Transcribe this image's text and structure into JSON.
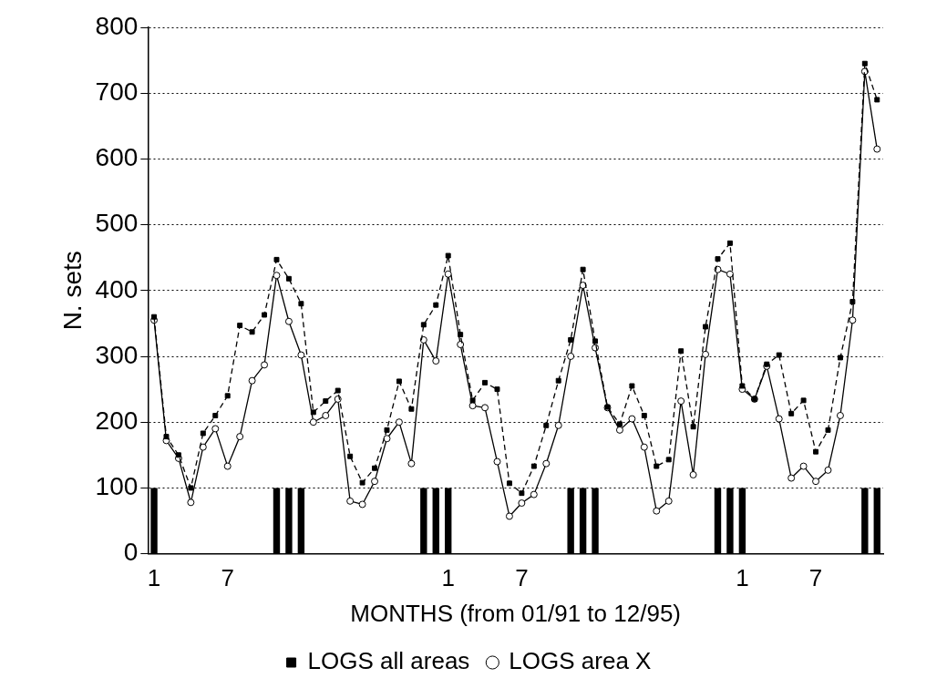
{
  "chart_data": {
    "type": "line",
    "xlabel": "MONTHS (from 01/91 to 12/95)",
    "ylabel": "N. sets",
    "categories": [
      "1",
      null,
      null,
      null,
      null,
      null,
      "7",
      null,
      null,
      null,
      null,
      null,
      null,
      null,
      null,
      null,
      null,
      null,
      null,
      null,
      null,
      null,
      null,
      null,
      "1",
      null,
      null,
      null,
      null,
      null,
      "7",
      null,
      null,
      null,
      null,
      null,
      null,
      null,
      null,
      null,
      null,
      null,
      null,
      null,
      null,
      null,
      null,
      null,
      "1",
      null,
      null,
      null,
      null,
      null,
      "7",
      null,
      null,
      null,
      null,
      null
    ],
    "series": [
      {
        "name": "LOGS all areas",
        "color": "#000000",
        "marker": "square",
        "line_style": "dashed",
        "values": [
          360,
          178,
          150,
          100,
          183,
          210,
          240,
          347,
          337,
          363,
          447,
          418,
          380,
          215,
          232,
          248,
          148,
          108,
          130,
          188,
          262,
          220,
          348,
          378,
          453,
          333,
          233,
          260,
          250,
          107,
          92,
          133,
          195,
          263,
          325,
          432,
          323,
          223,
          197,
          255,
          210,
          133,
          143,
          308,
          193,
          345,
          448,
          472,
          255,
          235,
          288,
          302,
          213,
          233,
          155,
          188,
          298,
          383,
          745,
          690
        ]
      },
      {
        "name": "LOGS area X",
        "color": "#000000",
        "marker": "circle",
        "line_style": "solid",
        "values": [
          355,
          172,
          145,
          78,
          162,
          190,
          133,
          178,
          263,
          287,
          423,
          353,
          302,
          200,
          210,
          235,
          80,
          75,
          110,
          175,
          200,
          137,
          325,
          293,
          425,
          318,
          225,
          222,
          140,
          57,
          77,
          90,
          137,
          195,
          300,
          408,
          313,
          222,
          188,
          205,
          162,
          65,
          80,
          232,
          120,
          303,
          432,
          425,
          250,
          235,
          285,
          205,
          115,
          133,
          110,
          127,
          210,
          355,
          733,
          615
        ]
      },
      {
        "type": "bar",
        "color": "#000000",
        "values": [
          100,
          null,
          null,
          null,
          null,
          null,
          null,
          null,
          null,
          null,
          100,
          100,
          100,
          null,
          null,
          null,
          null,
          null,
          null,
          null,
          null,
          null,
          100,
          100,
          100,
          null,
          null,
          null,
          null,
          null,
          null,
          null,
          null,
          null,
          100,
          100,
          100,
          null,
          null,
          null,
          null,
          null,
          null,
          null,
          null,
          null,
          100,
          100,
          100,
          null,
          null,
          null,
          null,
          null,
          null,
          null,
          null,
          null,
          100,
          100
        ]
      }
    ],
    "ylim": [
      0,
      800
    ],
    "yticks": [
      0,
      100,
      200,
      300,
      400,
      500,
      600,
      700,
      800
    ],
    "grid": "y",
    "legend": "bottom"
  }
}
